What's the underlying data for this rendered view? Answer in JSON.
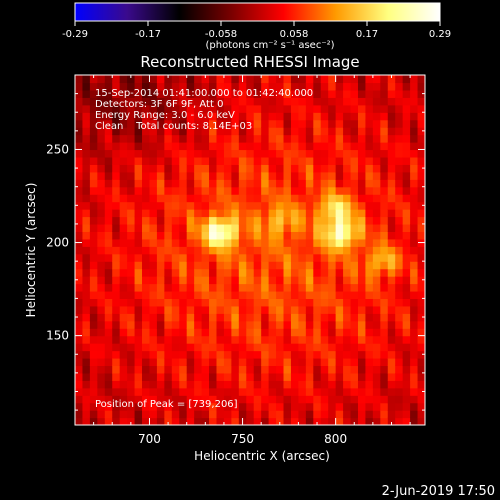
{
  "chart_data": {
    "type": "heatmap",
    "title": "Reconstructed RHESSI Image",
    "xlabel": "Heliocentric X (arcsec)",
    "ylabel": "Heliocentric Y (arcsec)",
    "xlim": [
      660,
      848
    ],
    "ylim": [
      102,
      290
    ],
    "x_ticks": [
      700,
      750,
      800
    ],
    "y_ticks": [
      150,
      200,
      250
    ],
    "colorbar": {
      "range": [
        -0.29,
        0.29
      ],
      "ticks": [
        "-0.29",
        "-0.17",
        "-0.058",
        "0.058",
        "0.17",
        "0.29"
      ],
      "unit_label": "(photons cm⁻² s⁻¹ asec⁻²)",
      "colormap": [
        "#0000ff",
        "#3a0a8c",
        "#000000",
        "#7a0000",
        "#ff0000",
        "#ff9a00",
        "#ffff80",
        "#ffffff"
      ]
    },
    "annotations": [
      "15-Sep-2014 01:41:00.000 to 01:42:40.000",
      "Detectors: 3F 6F 9F, Att 0",
      "Energy Range: 3.0 - 6.0 keV",
      "Clean    Total counts: 8.14E+03",
      "Position of Peak = [739,206]"
    ],
    "sources": [
      {
        "x": 738,
        "y": 206,
        "peak": 0.27
      },
      {
        "x": 803,
        "y": 205,
        "peak": 0.25
      },
      {
        "x": 800,
        "y": 218,
        "peak": 0.2
      },
      {
        "x": 770,
        "y": 212,
        "peak": 0.15
      },
      {
        "x": 825,
        "y": 190,
        "peak": 0.17
      }
    ],
    "peak_position": [
      739,
      206
    ],
    "footer_date": "2-Jun-2019 17:50"
  }
}
